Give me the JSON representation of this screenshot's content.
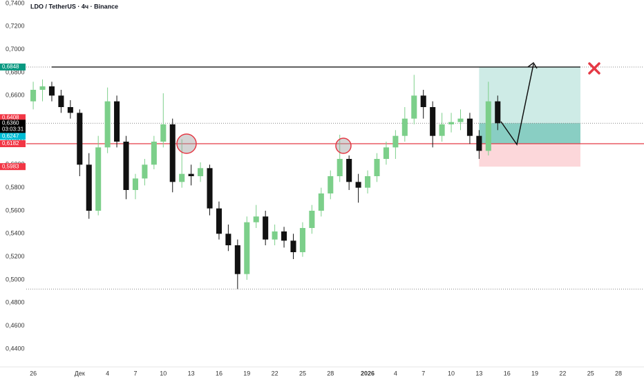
{
  "chart_data": {
    "type": "candlestick",
    "title": "LDO / TetherUS · 4ч · Binance",
    "up_color": "#7ccf8a",
    "down_color": "#111111",
    "xlim": [
      -0.75,
      65.75
    ],
    "ylim": [
      0.425,
      0.743
    ],
    "xticks": [
      {
        "value": 0,
        "label": "26"
      },
      {
        "value": 5,
        "label": "Дек"
      },
      {
        "value": 8,
        "label": "4"
      },
      {
        "value": 11,
        "label": "7"
      },
      {
        "value": 14,
        "label": "10"
      },
      {
        "value": 17,
        "label": "13"
      },
      {
        "value": 20,
        "label": "16"
      },
      {
        "value": 23,
        "label": "19"
      },
      {
        "value": 26,
        "label": "22"
      },
      {
        "value": 29,
        "label": "25"
      },
      {
        "value": 32,
        "label": "28"
      },
      {
        "value": 36,
        "label": "2026"
      },
      {
        "value": 39,
        "label": "4"
      },
      {
        "value": 42,
        "label": "7"
      },
      {
        "value": 45,
        "label": "10"
      },
      {
        "value": 48,
        "label": "13"
      },
      {
        "value": 51,
        "label": "16"
      },
      {
        "value": 54,
        "label": "19"
      },
      {
        "value": 57,
        "label": "22"
      },
      {
        "value": 60,
        "label": "25"
      },
      {
        "value": 63,
        "label": "28"
      }
    ],
    "yticks": [
      {
        "value": 0.44,
        "label": "0,4400"
      },
      {
        "value": 0.46,
        "label": "0,4600"
      },
      {
        "value": 0.48,
        "label": "0,4800"
      },
      {
        "value": 0.5,
        "label": "0,5000"
      },
      {
        "value": 0.52,
        "label": "0,5200"
      },
      {
        "value": 0.54,
        "label": "0,5400"
      },
      {
        "value": 0.56,
        "label": "0,5600"
      },
      {
        "value": 0.58,
        "label": "0,5800"
      },
      {
        "value": 0.6,
        "label": "0,6000"
      },
      {
        "value": 0.62,
        "label": "0,6200"
      },
      {
        "value": 0.64,
        "label": "0,6400"
      },
      {
        "value": 0.66,
        "label": "0,6600"
      },
      {
        "value": 0.68,
        "label": "0,6800"
      },
      {
        "value": 0.7,
        "label": "0,7000"
      },
      {
        "value": 0.72,
        "label": "0,7200"
      },
      {
        "value": 0.74,
        "label": "0,7400"
      }
    ],
    "x": [
      0,
      1,
      2,
      3,
      4,
      5,
      6,
      7,
      8,
      9,
      10,
      11,
      12,
      13,
      14,
      15,
      16,
      17,
      18,
      19,
      20,
      21,
      22,
      23,
      24,
      25,
      26,
      27,
      28,
      29,
      30,
      31,
      32,
      33,
      34,
      35,
      36,
      37,
      38,
      39,
      40,
      41,
      42,
      43,
      44,
      45,
      46,
      47,
      48,
      49,
      50
    ],
    "open": [
      0.655,
      0.665,
      0.668,
      0.66,
      0.65,
      0.645,
      0.6,
      0.56,
      0.615,
      0.655,
      0.62,
      0.578,
      0.588,
      0.6,
      0.62,
      0.635,
      0.585,
      0.592,
      0.59,
      0.597,
      0.562,
      0.54,
      0.53,
      0.505,
      0.55,
      0.555,
      0.535,
      0.542,
      0.534,
      0.524,
      0.545,
      0.56,
      0.575,
      0.59,
      0.605,
      0.585,
      0.58,
      0.59,
      0.605,
      0.615,
      0.625,
      0.64,
      0.66,
      0.65,
      0.625,
      0.635,
      0.637,
      0.64,
      0.625,
      0.612,
      0.655
    ],
    "high": [
      0.672,
      0.674,
      0.672,
      0.665,
      0.656,
      0.648,
      0.61,
      0.625,
      0.667,
      0.66,
      0.625,
      0.592,
      0.605,
      0.625,
      0.662,
      0.64,
      0.622,
      0.6,
      0.602,
      0.6,
      0.568,
      0.548,
      0.535,
      0.555,
      0.565,
      0.56,
      0.548,
      0.546,
      0.54,
      0.55,
      0.565,
      0.58,
      0.595,
      0.626,
      0.608,
      0.592,
      0.595,
      0.61,
      0.62,
      0.63,
      0.65,
      0.678,
      0.665,
      0.655,
      0.645,
      0.645,
      0.648,
      0.645,
      0.63,
      0.672,
      0.66
    ],
    "low": [
      0.648,
      0.655,
      0.655,
      0.645,
      0.64,
      0.59,
      0.553,
      0.556,
      0.61,
      0.615,
      0.57,
      0.57,
      0.582,
      0.596,
      0.615,
      0.576,
      0.58,
      0.582,
      0.585,
      0.556,
      0.535,
      0.525,
      0.492,
      0.5,
      0.545,
      0.53,
      0.53,
      0.528,
      0.518,
      0.52,
      0.54,
      0.555,
      0.57,
      0.585,
      0.578,
      0.567,
      0.575,
      0.585,
      0.6,
      0.605,
      0.62,
      0.635,
      0.64,
      0.615,
      0.62,
      0.628,
      0.63,
      0.618,
      0.605,
      0.608,
      0.63
    ],
    "close": [
      0.665,
      0.668,
      0.66,
      0.65,
      0.645,
      0.6,
      0.56,
      0.615,
      0.655,
      0.62,
      0.578,
      0.588,
      0.6,
      0.62,
      0.635,
      0.585,
      0.592,
      0.59,
      0.597,
      0.562,
      0.54,
      0.53,
      0.505,
      0.55,
      0.555,
      0.535,
      0.542,
      0.534,
      0.524,
      0.545,
      0.56,
      0.575,
      0.59,
      0.605,
      0.585,
      0.58,
      0.59,
      0.605,
      0.615,
      0.625,
      0.64,
      0.66,
      0.65,
      0.625,
      0.635,
      0.637,
      0.64,
      0.625,
      0.612,
      0.655,
      0.636
    ],
    "price_tags": [
      {
        "value": 0.6848,
        "label": "0,6848",
        "color": "#089981"
      },
      {
        "value": 0.6408,
        "label": "0,6408",
        "color": "#f23645"
      },
      {
        "value": 0.636,
        "label": "0,6360",
        "color": "#000000"
      },
      {
        "value": 0.6247,
        "label": "0,6247",
        "color": "#00bcd4"
      },
      {
        "value": 0.6182,
        "label": "0,6182",
        "color": "#f23645"
      },
      {
        "value": 0.5983,
        "label": "0,5983",
        "color": "#f23645"
      }
    ],
    "countdown": "03:03:31"
  }
}
